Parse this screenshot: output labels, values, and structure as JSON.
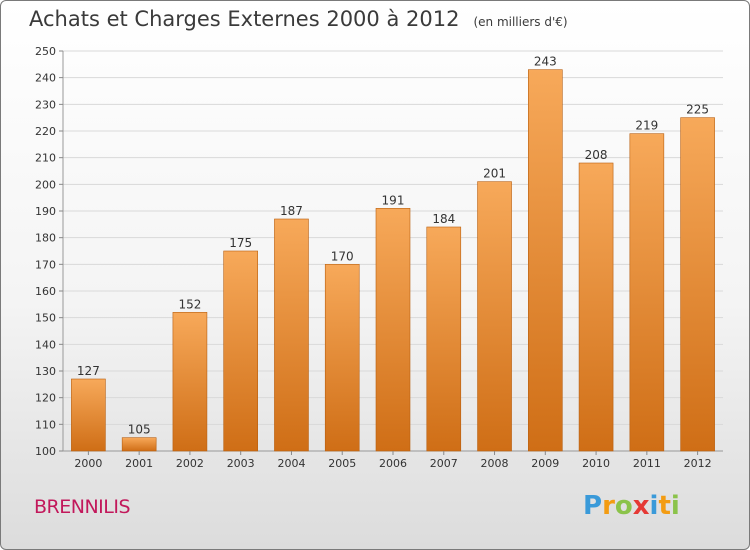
{
  "title": "Achats et Charges Externes 2000 à 2012",
  "subtitle": "(en milliers d'€)",
  "place": "BRENNILIS",
  "logo": {
    "text": "Proxiti",
    "letters": [
      {
        "ch": "P",
        "color": "#3a9ad9"
      },
      {
        "ch": "r",
        "color": "#f39c12"
      },
      {
        "ch": "o",
        "color": "#8bc34a"
      },
      {
        "ch": "x",
        "color": "#e53935"
      },
      {
        "ch": "i",
        "color": "#3a9ad9"
      },
      {
        "ch": "t",
        "color": "#f39c12"
      },
      {
        "ch": "i",
        "color": "#8bc34a"
      }
    ]
  },
  "colors": {
    "bar_top": "#f7a95a",
    "bar_bottom": "#cf6e16",
    "bar_edge": "#b85f10",
    "grid": "#d9d9d9",
    "axis_text": "#333333"
  },
  "chart_data": {
    "type": "bar",
    "title": "Achats et Charges Externes 2000 à 2012",
    "subtitle": "(en milliers d'€)",
    "categories": [
      "2000",
      "2001",
      "2002",
      "2003",
      "2004",
      "2005",
      "2006",
      "2007",
      "2008",
      "2009",
      "2010",
      "2011",
      "2012"
    ],
    "values": [
      127,
      105,
      152,
      175,
      187,
      170,
      191,
      184,
      201,
      243,
      208,
      219,
      225
    ],
    "ylim": [
      100,
      250
    ],
    "yticks": [
      100,
      110,
      120,
      130,
      140,
      150,
      160,
      170,
      180,
      190,
      200,
      210,
      220,
      230,
      240,
      250
    ],
    "grid": true,
    "xlabel": "",
    "ylabel": ""
  }
}
